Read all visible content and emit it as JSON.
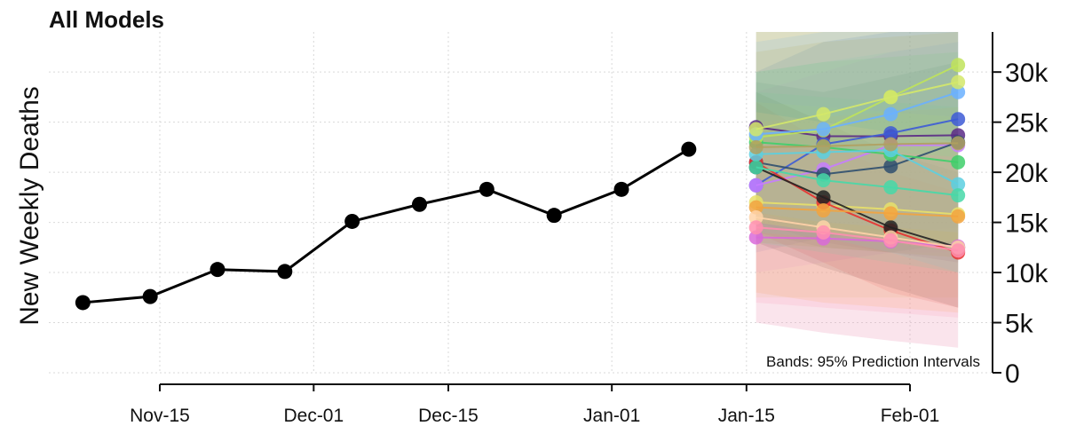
{
  "chart_data": {
    "type": "line",
    "title": "All Models",
    "xlabel": "",
    "ylabel": "New Weekly Deaths",
    "x_tick_labels": [
      "Nov-15",
      "Dec-01",
      "Dec-15",
      "Jan-01",
      "Jan-15",
      "Feb-01"
    ],
    "x_ticks": [
      "2020-11-15",
      "2020-12-01",
      "2020-12-15",
      "2021-01-01",
      "2021-01-15",
      "2021-02-01"
    ],
    "x_range": [
      "2020-11-03",
      "2021-02-05"
    ],
    "y_tick_labels": [
      "0",
      "5k",
      "10k",
      "15k",
      "20k",
      "25k",
      "30k"
    ],
    "y_ticks": [
      0,
      5000,
      10000,
      15000,
      20000,
      25000,
      30000
    ],
    "ylim": [
      0,
      34000
    ],
    "y_axis_side": "right",
    "grid": true,
    "annotation": "Bands: 95% Prediction Intervals",
    "observed": {
      "color": "#000000",
      "points": [
        {
          "x": "2020-11-07",
          "y": 7000
        },
        {
          "x": "2020-11-14",
          "y": 7600
        },
        {
          "x": "2020-11-21",
          "y": 10300
        },
        {
          "x": "2020-11-28",
          "y": 10100
        },
        {
          "x": "2020-12-05",
          "y": 15100
        },
        {
          "x": "2020-12-12",
          "y": 16800
        },
        {
          "x": "2020-12-19",
          "y": 18300
        },
        {
          "x": "2020-12-26",
          "y": 15700
        },
        {
          "x": "2021-01-02",
          "y": 18300
        },
        {
          "x": "2021-01-09",
          "y": 22300
        }
      ]
    },
    "forecast_dates": [
      "2021-01-16",
      "2021-01-23",
      "2021-01-30",
      "2021-02-06"
    ],
    "forecasts": [
      {
        "color": "#5b2a86",
        "values": [
          24500,
          23600,
          23600,
          23700
        ],
        "lower": [
          15000,
          13000,
          12000,
          11000
        ],
        "upper": [
          34000,
          34000,
          34000,
          34000
        ]
      },
      {
        "color": "#3d5bd6",
        "values": [
          18700,
          22800,
          23900,
          25300
        ],
        "lower": [
          12000,
          13500,
          14000,
          14500
        ],
        "upper": [
          30000,
          33000,
          34000,
          34000
        ]
      },
      {
        "color": "#c77cff",
        "values": [
          18700,
          20300,
          22700,
          22700
        ],
        "lower": [
          10000,
          11000,
          12000,
          12000
        ],
        "upper": [
          28000,
          30000,
          32000,
          33000
        ]
      },
      {
        "color": "#2f4f6f",
        "values": [
          21000,
          19800,
          20600,
          23000
        ],
        "lower": [
          14000,
          12500,
          12000,
          13000
        ],
        "upper": [
          29000,
          28000,
          29500,
          31000
        ]
      },
      {
        "color": "#e8e06a",
        "values": [
          17000,
          16700,
          16300,
          15800
        ],
        "lower": [
          7500,
          7500,
          7500,
          7500
        ],
        "upper": [
          27000,
          26500,
          26000,
          25500
        ]
      },
      {
        "color": "#e83030",
        "values": [
          21000,
          17000,
          14200,
          12000
        ],
        "lower": [
          14000,
          11000,
          8000,
          6500
        ],
        "upper": [
          27000,
          23000,
          20000,
          18000
        ]
      },
      {
        "color": "#222222",
        "values": [
          20500,
          17500,
          14500,
          12500
        ],
        "lower": [
          13000,
          10500,
          8500,
          6500
        ],
        "upper": [
          28000,
          25000,
          22000,
          20000
        ]
      },
      {
        "color": "#d96ad9",
        "values": [
          13500,
          13400,
          13100,
          12600
        ],
        "lower": [
          5000,
          4000,
          3200,
          2500
        ],
        "upper": [
          22000,
          23000,
          24000,
          25000
        ]
      },
      {
        "color": "#3ecf6a",
        "values": [
          23000,
          22500,
          21800,
          21000
        ],
        "lower": [
          16000,
          14500,
          13500,
          12500
        ],
        "upper": [
          30000,
          31000,
          31500,
          32000
        ]
      },
      {
        "color": "#f2a340",
        "values": [
          16500,
          16200,
          15900,
          15600
        ],
        "lower": [
          8000,
          7000,
          6500,
          6000
        ],
        "upper": [
          25000,
          25500,
          26000,
          26500
        ]
      },
      {
        "color": "#5ccfe0",
        "values": [
          21800,
          22000,
          22200,
          18800
        ],
        "lower": [
          14000,
          13500,
          12000,
          10000
        ],
        "upper": [
          30000,
          31000,
          32000,
          33000
        ]
      },
      {
        "color": "#46d8a8",
        "values": [
          20500,
          19200,
          18500,
          17700
        ],
        "lower": [
          13000,
          12000,
          11000,
          10000
        ],
        "upper": [
          28000,
          27500,
          27000,
          26500
        ]
      },
      {
        "color": "#bfe35a",
        "values": [
          23500,
          24200,
          27500,
          30700
        ],
        "lower": [
          15000,
          14000,
          13000,
          12000
        ],
        "upper": [
          34000,
          34000,
          34000,
          34000
        ]
      },
      {
        "color": "#6ab0ff",
        "values": [
          23800,
          24300,
          25800,
          28000
        ],
        "lower": [
          16000,
          15000,
          14500,
          14000
        ],
        "upper": [
          33000,
          34000,
          34000,
          34000
        ]
      },
      {
        "color": "#ffd3a8",
        "values": [
          15500,
          14500,
          13500,
          12500
        ],
        "lower": [
          5000,
          4000,
          3200,
          2500
        ],
        "upper": [
          26000,
          25000,
          24000,
          23000
        ]
      },
      {
        "color": "#b0a060",
        "values": [
          22500,
          22600,
          22800,
          22900
        ],
        "lower": [
          13000,
          12500,
          12000,
          11500
        ],
        "upper": [
          32000,
          33000,
          33500,
          34000
        ]
      },
      {
        "color": "#d4e86a",
        "values": [
          24300,
          25800,
          27500,
          29000
        ],
        "lower": [
          15000,
          14000,
          13500,
          13000
        ],
        "upper": [
          34000,
          34000,
          34000,
          34000
        ]
      },
      {
        "color": "#ff8fb0",
        "values": [
          14500,
          14000,
          13200,
          12200
        ],
        "lower": [
          7000,
          6500,
          6000,
          5500
        ],
        "upper": [
          23000,
          22500,
          22000,
          21500
        ]
      }
    ]
  }
}
